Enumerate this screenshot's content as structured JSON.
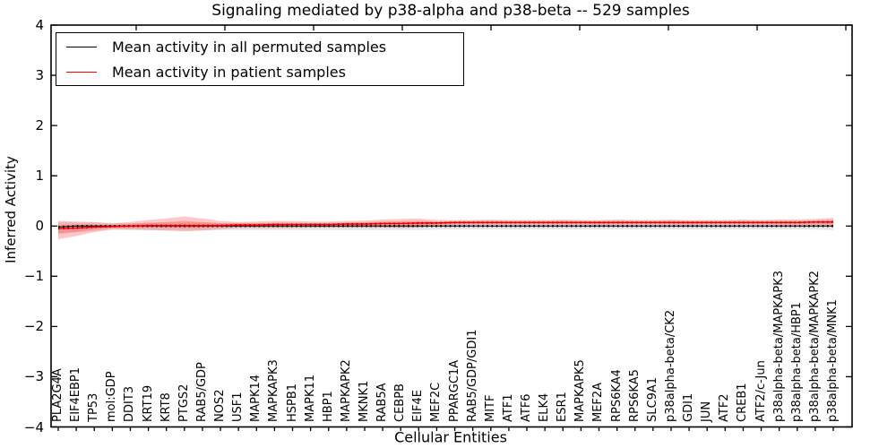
{
  "chart": {
    "title": "Signaling mediated by p38-alpha and p38-beta -- 529 samples",
    "xlabel": "Cellular Entities",
    "ylabel": "Inferred Activity"
  },
  "chart_data": {
    "type": "line",
    "title": "Signaling mediated by p38-alpha and p38-beta -- 529 samples",
    "xlabel": "Cellular Entities",
    "ylabel": "Inferred Activity",
    "ylim": [
      -4,
      4
    ],
    "yticks": [
      4,
      3,
      2,
      1,
      0,
      -1,
      -2,
      -3,
      -4
    ],
    "grid": false,
    "legend_position": "upper left",
    "colors": {
      "permuted_line": "#000000",
      "patient_line": "#ff0000",
      "patient_band": "rgba(255,70,70,0.30)",
      "permuted_band": "rgba(110,110,110,0.18)"
    },
    "categories": [
      "PLA2G4A",
      "EIF4EBP1",
      "TP53",
      "mol:GDP",
      "DDIT3",
      "KRT19",
      "KRT8",
      "PTGS2",
      "RAB5/GDP",
      "NOS2",
      "USF1",
      "MAPK14",
      "MAPKAPK3",
      "HSPB1",
      "MAPK11",
      "HBP1",
      "MAPKAPK2",
      "MKNK1",
      "RAB5A",
      "CEBPB",
      "EIF4E",
      "MEF2C",
      "PPARGC1A",
      "RAB5/GDP/GDI1",
      "MITF",
      "ATF1",
      "ATF6",
      "ELK4",
      "ESR1",
      "MAPKAPK5",
      "MEF2A",
      "RPS6KA4",
      "RPS6KA5",
      "SLC9A1",
      "p38alpha-beta/CK2",
      "GDI1",
      "JUN",
      "ATF2",
      "CREB1",
      "ATF2/c-Jun",
      "p38alpha-beta/MAPKAPK3",
      "p38alpha-beta/HBP1",
      "p38alpha-beta/MAPKAPK2",
      "p38alpha-beta/MNK1"
    ],
    "series": [
      {
        "name": "Mean activity in all permuted samples",
        "color": "#000000",
        "values": [
          -0.02,
          0,
          0,
          0,
          0,
          0,
          0,
          0,
          0,
          0,
          0,
          0,
          0,
          0,
          0,
          0,
          0,
          0,
          0,
          0,
          0,
          0,
          0,
          0,
          0,
          0,
          0,
          0,
          0,
          0,
          0,
          0,
          0,
          0,
          0,
          0,
          0,
          0,
          0,
          0,
          0,
          0,
          0,
          0
        ],
        "band_hi": [
          0.08,
          0.07,
          0.07,
          0.06,
          0.06,
          0.06,
          0.07,
          0.07,
          0.07,
          0.06,
          0.06,
          0.06,
          0.06,
          0.06,
          0.06,
          0.06,
          0.06,
          0.06,
          0.06,
          0.06,
          0.06,
          0.06,
          0.06,
          0.06,
          0.06,
          0.06,
          0.06,
          0.06,
          0.06,
          0.06,
          0.06,
          0.06,
          0.06,
          0.06,
          0.06,
          0.06,
          0.06,
          0.06,
          0.06,
          0.06,
          0.06,
          0.06,
          0.06,
          0.07
        ],
        "band_lo": [
          -0.14,
          -0.12,
          -0.1,
          -0.08,
          -0.08,
          -0.08,
          -0.09,
          -0.1,
          -0.09,
          -0.08,
          -0.08,
          -0.08,
          -0.08,
          -0.08,
          -0.08,
          -0.08,
          -0.08,
          -0.08,
          -0.08,
          -0.08,
          -0.08,
          -0.07,
          -0.07,
          -0.07,
          -0.07,
          -0.07,
          -0.07,
          -0.07,
          -0.07,
          -0.07,
          -0.07,
          -0.07,
          -0.07,
          -0.07,
          -0.07,
          -0.07,
          -0.07,
          -0.07,
          -0.07,
          -0.07,
          -0.07,
          -0.07,
          -0.07,
          -0.08
        ]
      },
      {
        "name": "Mean activity in patient samples",
        "color": "#ff0000",
        "values": [
          -0.05,
          -0.04,
          -0.02,
          -0.01,
          0.0,
          0.01,
          0.01,
          0.01,
          0.01,
          0.01,
          0.02,
          0.02,
          0.03,
          0.03,
          0.03,
          0.03,
          0.04,
          0.04,
          0.05,
          0.05,
          0.06,
          0.06,
          0.07,
          0.07,
          0.07,
          0.07,
          0.07,
          0.07,
          0.07,
          0.07,
          0.07,
          0.07,
          0.07,
          0.07,
          0.07,
          0.07,
          0.07,
          0.07,
          0.07,
          0.07,
          0.07,
          0.07,
          0.08,
          0.08
        ],
        "band_hi": [
          0.1,
          0.09,
          0.08,
          0.05,
          0.08,
          0.12,
          0.15,
          0.19,
          0.15,
          0.1,
          0.08,
          0.09,
          0.1,
          0.1,
          0.09,
          0.09,
          0.1,
          0.11,
          0.13,
          0.14,
          0.15,
          0.12,
          0.12,
          0.12,
          0.13,
          0.12,
          0.12,
          0.12,
          0.13,
          0.12,
          0.12,
          0.13,
          0.12,
          0.12,
          0.13,
          0.12,
          0.12,
          0.12,
          0.13,
          0.12,
          0.13,
          0.13,
          0.14,
          0.16
        ],
        "band_lo": [
          -0.26,
          -0.2,
          -0.12,
          -0.06,
          -0.07,
          -0.08,
          -0.09,
          -0.1,
          -0.09,
          -0.06,
          -0.04,
          -0.04,
          -0.04,
          -0.04,
          -0.03,
          -0.03,
          -0.03,
          -0.03,
          -0.03,
          -0.04,
          -0.03,
          0.0,
          0.01,
          0.02,
          0.02,
          0.02,
          0.02,
          0.02,
          0.02,
          0.02,
          0.01,
          0.02,
          0.02,
          0.02,
          0.02,
          0.01,
          0.02,
          0.02,
          0.02,
          0.02,
          0.01,
          0.01,
          0.01,
          -0.01
        ]
      }
    ]
  }
}
